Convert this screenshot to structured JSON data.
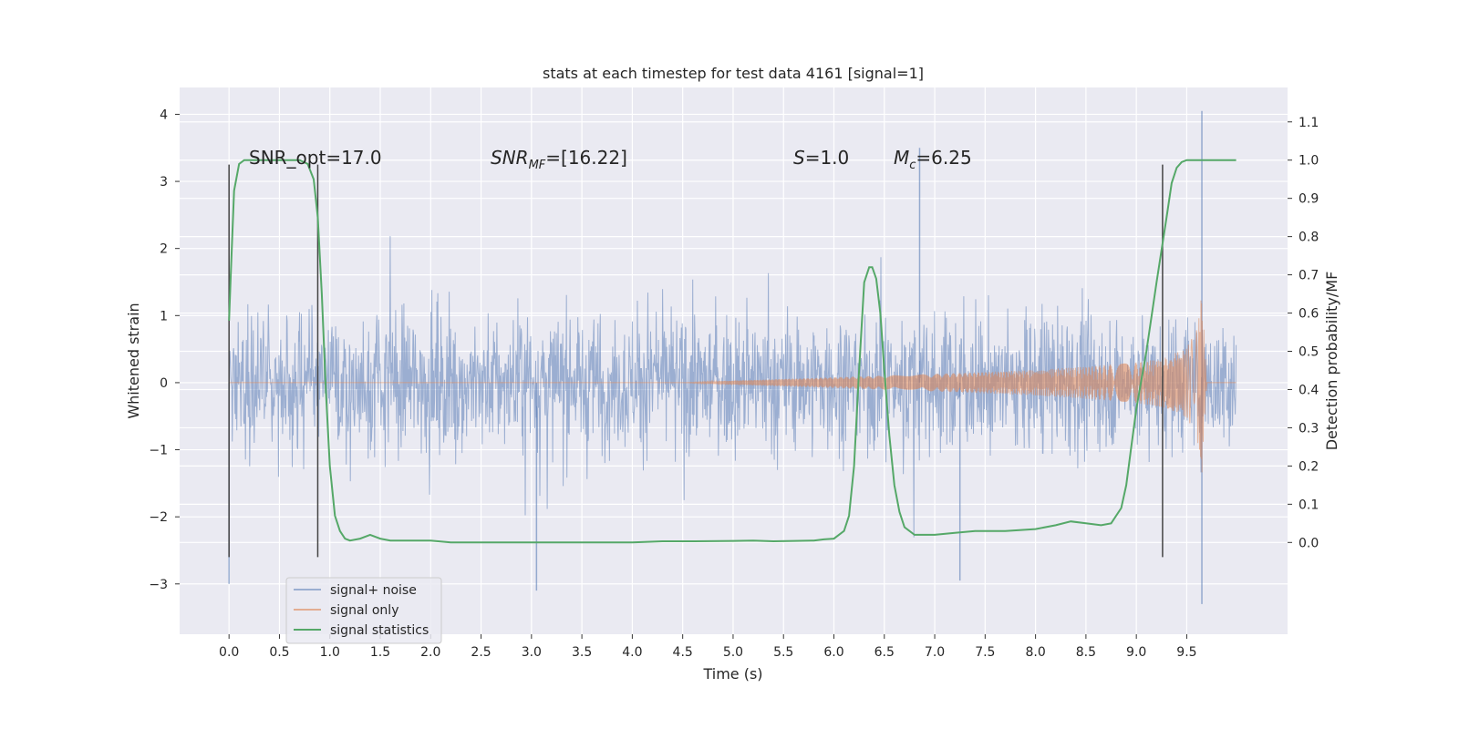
{
  "chart_data": {
    "type": "line",
    "title": "stats at each timestep for test data 4161 [signal=1]",
    "xlabel": "Time (s)",
    "ylabel": "Whitened strain",
    "ylabel_right": "Detection probability/MF",
    "xlim": [
      -0.49,
      10.5
    ],
    "ylim": [
      -3.75,
      4.4
    ],
    "ylim_right": [
      -0.24,
      1.19
    ],
    "x_ticks": [
      "0.0",
      "0.5",
      "1.0",
      "1.5",
      "2.0",
      "2.5",
      "3.0",
      "3.5",
      "4.0",
      "4.5",
      "5.0",
      "5.5",
      "6.0",
      "6.5",
      "7.0",
      "7.5",
      "8.0",
      "8.5",
      "9.0",
      "9.5"
    ],
    "y_ticks": [
      "−3",
      "−2",
      "−1",
      "0",
      "1",
      "2",
      "3",
      "4"
    ],
    "y_ticks_right": [
      "0.0",
      "0.1",
      "0.2",
      "0.3",
      "0.4",
      "0.5",
      "0.6",
      "0.7",
      "0.8",
      "0.9",
      "1.0",
      "1.1"
    ],
    "grid": true,
    "legend_position": "lower-left",
    "background_color": "#eaeaf2",
    "annotations": {
      "snr_opt": "SNR_opt=17.0",
      "snr_mf_base": "SNR",
      "snr_mf_sub": "MF",
      "snr_mf_value": "=[16.22]",
      "s_symbol": "S",
      "s_value": "=1.0",
      "mc_base": "M",
      "mc_sub": "c",
      "mc_value": "=6.25"
    },
    "series": [
      {
        "name": "signal+ noise",
        "color": "#4c72b0",
        "description_shape": "whitened noise with amplitude ~±1.5, spikes to ±3",
        "x_range": [
          0.0,
          9.99
        ],
        "notable_peaks": [
          [
            0.0,
            -3.0
          ],
          [
            6.85,
            3.5
          ],
          [
            9.65,
            4.05
          ],
          [
            9.65,
            -3.3
          ],
          [
            3.05,
            -3.1
          ],
          [
            7.25,
            -2.95
          ]
        ]
      },
      {
        "name": "signal only",
        "color": "#dd8452",
        "description_shape": "chirp, near zero until ~4.5 s, growing to ±1.35 at merger",
        "x": [
          0.0,
          4.5,
          5.0,
          6.0,
          7.0,
          8.0,
          8.5,
          9.0,
          9.3,
          9.5,
          9.6,
          9.65,
          9.7,
          9.99
        ],
        "envelope": [
          0.0,
          0.0,
          0.03,
          0.08,
          0.13,
          0.19,
          0.24,
          0.3,
          0.38,
          0.52,
          0.8,
          1.35,
          0.0,
          0.0
        ]
      },
      {
        "name": "signal statistics",
        "color": "#55a868",
        "axis": "right",
        "x": [
          0.0,
          0.02,
          0.05,
          0.1,
          0.15,
          0.2,
          0.3,
          0.5,
          0.7,
          0.78,
          0.84,
          0.88,
          0.92,
          0.96,
          1.0,
          1.05,
          1.1,
          1.15,
          1.2,
          1.3,
          1.4,
          1.5,
          1.6,
          1.8,
          2.0,
          2.2,
          2.5,
          3.0,
          3.5,
          4.0,
          4.3,
          4.6,
          5.0,
          5.2,
          5.4,
          5.6,
          5.8,
          5.9,
          6.0,
          6.1,
          6.15,
          6.2,
          6.25,
          6.3,
          6.35,
          6.38,
          6.42,
          6.46,
          6.5,
          6.55,
          6.6,
          6.65,
          6.7,
          6.8,
          6.9,
          7.0,
          7.2,
          7.4,
          7.7,
          8.0,
          8.2,
          8.35,
          8.5,
          8.65,
          8.75,
          8.85,
          8.9,
          8.95,
          9.0,
          9.1,
          9.2,
          9.3,
          9.35,
          9.4,
          9.45,
          9.5,
          9.6,
          9.8,
          9.99
        ],
        "y": [
          0.58,
          0.72,
          0.92,
          0.99,
          1.0,
          1.0,
          1.0,
          1.0,
          1.0,
          0.99,
          0.95,
          0.85,
          0.65,
          0.4,
          0.2,
          0.07,
          0.03,
          0.01,
          0.005,
          0.01,
          0.02,
          0.01,
          0.005,
          0.005,
          0.005,
          0.0,
          0.0,
          0.0,
          0.0,
          0.0,
          0.003,
          0.003,
          0.004,
          0.005,
          0.003,
          0.004,
          0.005,
          0.008,
          0.01,
          0.03,
          0.07,
          0.2,
          0.45,
          0.68,
          0.72,
          0.72,
          0.69,
          0.6,
          0.45,
          0.28,
          0.15,
          0.08,
          0.04,
          0.02,
          0.02,
          0.02,
          0.025,
          0.03,
          0.03,
          0.035,
          0.045,
          0.055,
          0.05,
          0.045,
          0.05,
          0.09,
          0.15,
          0.25,
          0.35,
          0.5,
          0.68,
          0.85,
          0.94,
          0.98,
          0.995,
          1.0,
          1.0,
          1.0,
          1.0
        ]
      }
    ],
    "vertical_markers": [
      {
        "x": 0.0,
        "y_top": 3.25,
        "y_bottom": -2.6
      },
      {
        "x": 0.88,
        "y_top": 3.25,
        "y_bottom": -2.6
      },
      {
        "x": 9.26,
        "y_top": 3.25,
        "y_bottom": -2.6
      }
    ]
  }
}
